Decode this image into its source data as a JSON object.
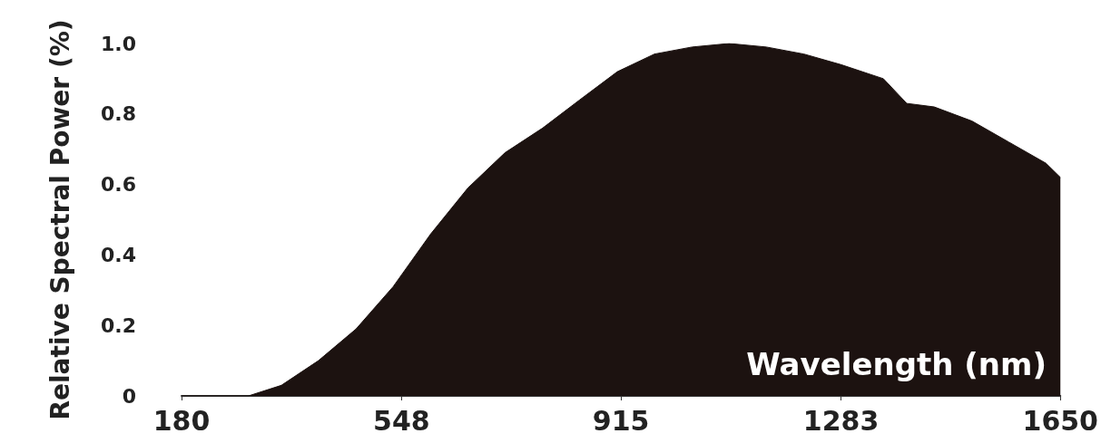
{
  "chart_data": {
    "type": "area",
    "xlabel": "Wavelength (nm)",
    "ylabel": "Relative Spectral Power (%)",
    "x": [
      180,
      292,
      347,
      409,
      472,
      534,
      597,
      659,
      721,
      784,
      846,
      909,
      971,
      1034,
      1096,
      1158,
      1221,
      1283,
      1354,
      1393,
      1439,
      1502,
      1564,
      1626,
      1650
    ],
    "series": [
      {
        "color": "#1c1210",
        "values": [
          0,
          0,
          0.03,
          0.1,
          0.19,
          0.31,
          0.46,
          0.59,
          0.69,
          0.76,
          0.84,
          0.92,
          0.97,
          0.99,
          1.0,
          0.99,
          0.97,
          0.94,
          0.9,
          0.83,
          0.82,
          0.78,
          0.72,
          0.66,
          0.62
        ]
      }
    ],
    "xlim": [
      180,
      1650
    ],
    "xticks": [
      180,
      548,
      915,
      1283,
      1650
    ],
    "ylim": [
      0,
      1
    ],
    "yticks": [
      0,
      0.2,
      0.4,
      0.6,
      0.8,
      {
        "value": 1,
        "label": "1.0"
      }
    ],
    "grid": false,
    "marker": "none"
  }
}
